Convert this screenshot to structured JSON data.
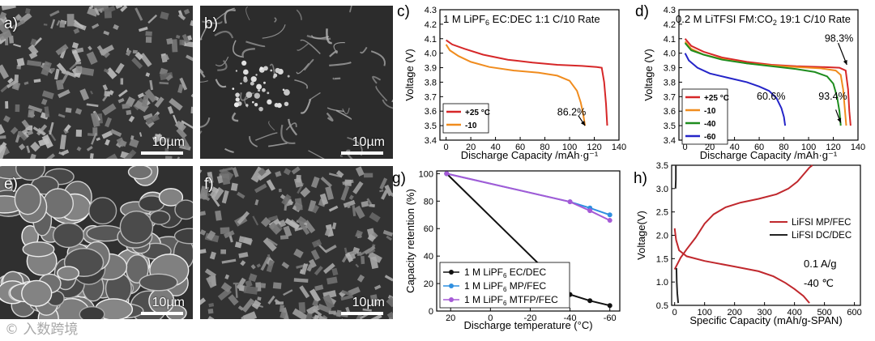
{
  "sem_images": [
    {
      "id": "a",
      "letter": "a)",
      "scale": "10µm",
      "seed": 11,
      "style": "flake",
      "bright": 0.55
    },
    {
      "id": "b",
      "letter": "b)",
      "scale": "10µm",
      "seed": 23,
      "style": "smooth",
      "bright": 0.35
    },
    {
      "id": "e",
      "letter": "e)",
      "scale": "10µm",
      "seed": 37,
      "style": "grain",
      "bright": 0.45
    },
    {
      "id": "f",
      "letter": "f)",
      "scale": "10µm",
      "seed": 41,
      "style": "flake2",
      "bright": 0.5
    }
  ],
  "watermark": "© 入数跨境",
  "chart_data": [
    {
      "id": "c",
      "type": "line",
      "panel_letter": "c)",
      "title_parts": [
        [
          "1 M LiPF",
          ""
        ],
        [
          "6",
          "sub"
        ],
        [
          " EC:DEC 1:1 C/10 Rate",
          ""
        ]
      ],
      "xlabel": "Discharge Capacity /mAh·g⁻¹",
      "ylabel": "Voltage (V)",
      "xlim": [
        -5,
        140
      ],
      "ylim": [
        3.4,
        4.3
      ],
      "xticks": [
        0,
        20,
        40,
        60,
        80,
        100,
        120,
        140
      ],
      "yticks": [
        3.4,
        3.5,
        3.6,
        3.7,
        3.8,
        3.9,
        4.0,
        4.1,
        4.2,
        4.3
      ],
      "legend_position": "bottom-left",
      "series": [
        {
          "name": "+25 °C",
          "color": "#d62728",
          "points": [
            [
              0,
              4.09
            ],
            [
              5,
              4.06
            ],
            [
              15,
              4.03
            ],
            [
              30,
              3.99
            ],
            [
              50,
              3.955
            ],
            [
              70,
              3.935
            ],
            [
              90,
              3.92
            ],
            [
              110,
              3.912
            ],
            [
              122,
              3.905
            ],
            [
              126,
              3.9
            ],
            [
              128,
              3.8
            ],
            [
              129.5,
              3.65
            ],
            [
              130.5,
              3.5
            ]
          ]
        },
        {
          "name": "-10",
          "color": "#f08c1e",
          "points": [
            [
              0,
              4.06
            ],
            [
              3,
              4.02
            ],
            [
              10,
              3.98
            ],
            [
              20,
              3.94
            ],
            [
              35,
              3.905
            ],
            [
              55,
              3.88
            ],
            [
              75,
              3.865
            ],
            [
              90,
              3.845
            ],
            [
              100,
              3.81
            ],
            [
              106,
              3.74
            ],
            [
              109,
              3.66
            ],
            [
              111,
              3.58
            ],
            [
              112.5,
              3.5
            ]
          ]
        }
      ],
      "annotations": [
        {
          "text": "86.2%",
          "x": 90,
          "y": 3.57
        }
      ]
    },
    {
      "id": "d",
      "type": "line",
      "panel_letter": "d)",
      "title_parts": [
        [
          "0.2 M LiTFSI FM:CO",
          ""
        ],
        [
          "2",
          "sub"
        ],
        [
          " 19:1 C/10 Rate",
          ""
        ]
      ],
      "xlabel": "Discharge Capacity /mAh·g⁻¹",
      "ylabel": "Voltage (V)",
      "xlim": [
        -5,
        140
      ],
      "ylim": [
        3.4,
        4.3
      ],
      "xticks": [
        0,
        20,
        40,
        60,
        80,
        100,
        120,
        140
      ],
      "yticks": [
        3.4,
        3.5,
        3.6,
        3.7,
        3.8,
        3.9,
        4.0,
        4.1,
        4.2,
        4.3
      ],
      "legend_position": "bottom-left",
      "series": [
        {
          "name": "+25 °C",
          "color": "#d62728",
          "points": [
            [
              0,
              4.1
            ],
            [
              5,
              4.05
            ],
            [
              15,
              4.01
            ],
            [
              30,
              3.97
            ],
            [
              50,
              3.94
            ],
            [
              70,
              3.92
            ],
            [
              90,
              3.91
            ],
            [
              110,
              3.905
            ],
            [
              125,
              3.9
            ],
            [
              130,
              3.88
            ],
            [
              132,
              3.75
            ],
            [
              133,
              3.6
            ],
            [
              134,
              3.5
            ]
          ]
        },
        {
          "name": "-10",
          "color": "#f08c1e",
          "points": [
            [
              0,
              4.08
            ],
            [
              5,
              4.03
            ],
            [
              15,
              3.99
            ],
            [
              30,
              3.96
            ],
            [
              50,
              3.93
            ],
            [
              70,
              3.915
            ],
            [
              90,
              3.905
            ],
            [
              110,
              3.895
            ],
            [
              122,
              3.88
            ],
            [
              126,
              3.85
            ],
            [
              128,
              3.75
            ],
            [
              129.5,
              3.6
            ],
            [
              130.5,
              3.5
            ]
          ]
        },
        {
          "name": "-40",
          "color": "#1e8c1e",
          "points": [
            [
              0,
              4.07
            ],
            [
              5,
              4.02
            ],
            [
              15,
              3.99
            ],
            [
              30,
              3.955
            ],
            [
              50,
              3.93
            ],
            [
              70,
              3.91
            ],
            [
              90,
              3.89
            ],
            [
              105,
              3.87
            ],
            [
              115,
              3.84
            ],
            [
              120,
              3.79
            ],
            [
              123,
              3.7
            ],
            [
              125,
              3.6
            ],
            [
              126,
              3.5
            ]
          ]
        },
        {
          "name": "-60",
          "color": "#2424c8",
          "points": [
            [
              0,
              4.0
            ],
            [
              3,
              3.95
            ],
            [
              10,
              3.9
            ],
            [
              20,
              3.86
            ],
            [
              35,
              3.83
            ],
            [
              50,
              3.8
            ],
            [
              60,
              3.77
            ],
            [
              68,
              3.74
            ],
            [
              74,
              3.69
            ],
            [
              78,
              3.62
            ],
            [
              80,
              3.56
            ],
            [
              81,
              3.5
            ]
          ]
        }
      ],
      "annotations": [
        {
          "text": "98.3%",
          "x": 113,
          "y": 4.08
        },
        {
          "text": "93.4%",
          "x": 108,
          "y": 3.68
        },
        {
          "text": "60.6%",
          "x": 58,
          "y": 3.68
        }
      ]
    },
    {
      "id": "g",
      "type": "line",
      "panel_letter": "g)",
      "xlabel": "Discharge temperature (°C)",
      "ylabel": "Capacity retention (%)",
      "xlim": [
        27,
        -65
      ],
      "ylim": [
        0,
        102
      ],
      "xticks": [
        20,
        0,
        -20,
        -40,
        -60
      ],
      "yticks": [
        0,
        20,
        40,
        60,
        80,
        100
      ],
      "legend_position": "bottom-left",
      "series": [
        {
          "name_parts": [
            [
              "1 M LiPF",
              ""
            ],
            [
              "6",
              "sub"
            ],
            [
              " EC/DEC",
              ""
            ]
          ],
          "color": "#111111",
          "points": [
            [
              22,
              100
            ],
            [
              -40,
              12
            ],
            [
              -50,
              7.5
            ],
            [
              -60,
              4
            ]
          ]
        },
        {
          "name_parts": [
            [
              "1 M LiPF",
              ""
            ],
            [
              "6",
              "sub"
            ],
            [
              " MP/FEC",
              ""
            ]
          ],
          "color": "#2f8fe0",
          "points": [
            [
              22,
              100
            ],
            [
              -40,
              79.5
            ],
            [
              -50,
              75
            ],
            [
              -60,
              70
            ]
          ]
        },
        {
          "name_parts": [
            [
              "1 M LiPF",
              ""
            ],
            [
              "6",
              "sub"
            ],
            [
              " MTFP/FEC",
              ""
            ]
          ],
          "color": "#a55ad6",
          "points": [
            [
              22,
              100
            ],
            [
              -40,
              79.5
            ],
            [
              -50,
              73
            ],
            [
              -60,
              66
            ]
          ]
        }
      ]
    },
    {
      "id": "h",
      "type": "line",
      "panel_letter": "h)",
      "xlabel": "Specific Capacity (mAh/g-SPAN)",
      "ylabel": "Voltage(V)",
      "xlim": [
        -10,
        620
      ],
      "ylim": [
        0.5,
        3.5
      ],
      "xticks": [
        0,
        100,
        200,
        300,
        400,
        500,
        600
      ],
      "yticks": [
        0.5,
        1.0,
        1.5,
        2.0,
        2.5,
        3.0,
        3.5
      ],
      "legend_position": "center-right",
      "texts": [
        "0.1 A/g",
        "-40 ℃"
      ],
      "series": [
        {
          "name": "LiFSI MP/FEC",
          "color": "#c0282d",
          "points": [
            [
              0,
              1.27
            ],
            [
              20,
              1.52
            ],
            [
              40,
              1.7
            ],
            [
              70,
              1.95
            ],
            [
              100,
              2.25
            ],
            [
              130,
              2.45
            ],
            [
              170,
              2.6
            ],
            [
              220,
              2.7
            ],
            [
              280,
              2.78
            ],
            [
              340,
              2.88
            ],
            [
              380,
              3.0
            ],
            [
              410,
              3.15
            ],
            [
              430,
              3.3
            ],
            [
              450,
              3.45
            ],
            [
              460,
              3.5
            ]
          ],
          "discharge": [
            [
              0,
              2.15
            ],
            [
              5,
              1.9
            ],
            [
              15,
              1.68
            ],
            [
              40,
              1.55
            ],
            [
              100,
              1.45
            ],
            [
              200,
              1.33
            ],
            [
              280,
              1.23
            ],
            [
              330,
              1.12
            ],
            [
              370,
              0.98
            ],
            [
              400,
              0.85
            ],
            [
              430,
              0.7
            ],
            [
              450,
              0.55
            ]
          ]
        },
        {
          "name": "LiFSI DC/DEC",
          "color": "#222222",
          "points": [
            [
              4,
              3.5
            ],
            [
              4,
              3.2
            ],
            [
              3,
              3.0
            ]
          ],
          "discharge": [
            [
              6,
              1.3
            ],
            [
              7,
              1.0
            ],
            [
              9,
              0.75
            ],
            [
              12,
              0.55
            ]
          ]
        }
      ]
    }
  ]
}
